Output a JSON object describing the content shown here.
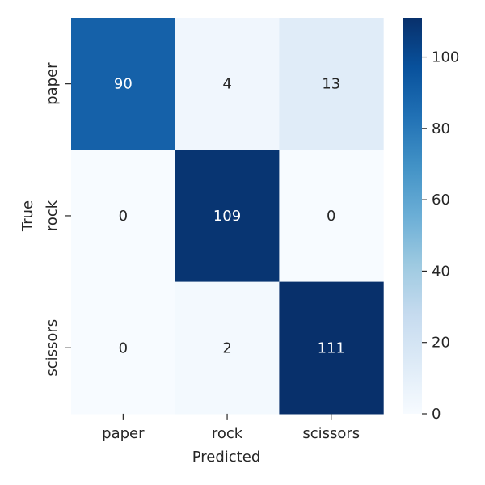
{
  "chart_data": {
    "type": "heatmap",
    "title": "",
    "xlabel": "Predicted",
    "ylabel": "True",
    "x_categories": [
      "paper",
      "rock",
      "scissors"
    ],
    "y_categories": [
      "paper",
      "rock",
      "scissors"
    ],
    "values": [
      [
        90,
        4,
        13
      ],
      [
        0,
        109,
        0
      ],
      [
        0,
        2,
        111
      ]
    ],
    "colorscale": "Blues",
    "vmin": 0,
    "vmax": 111,
    "colorbar": {
      "ticks": [
        0,
        20,
        40,
        60,
        80,
        100
      ],
      "tick_labels": [
        "0",
        "20",
        "40",
        "60",
        "80",
        "100"
      ]
    },
    "annotate": true
  }
}
